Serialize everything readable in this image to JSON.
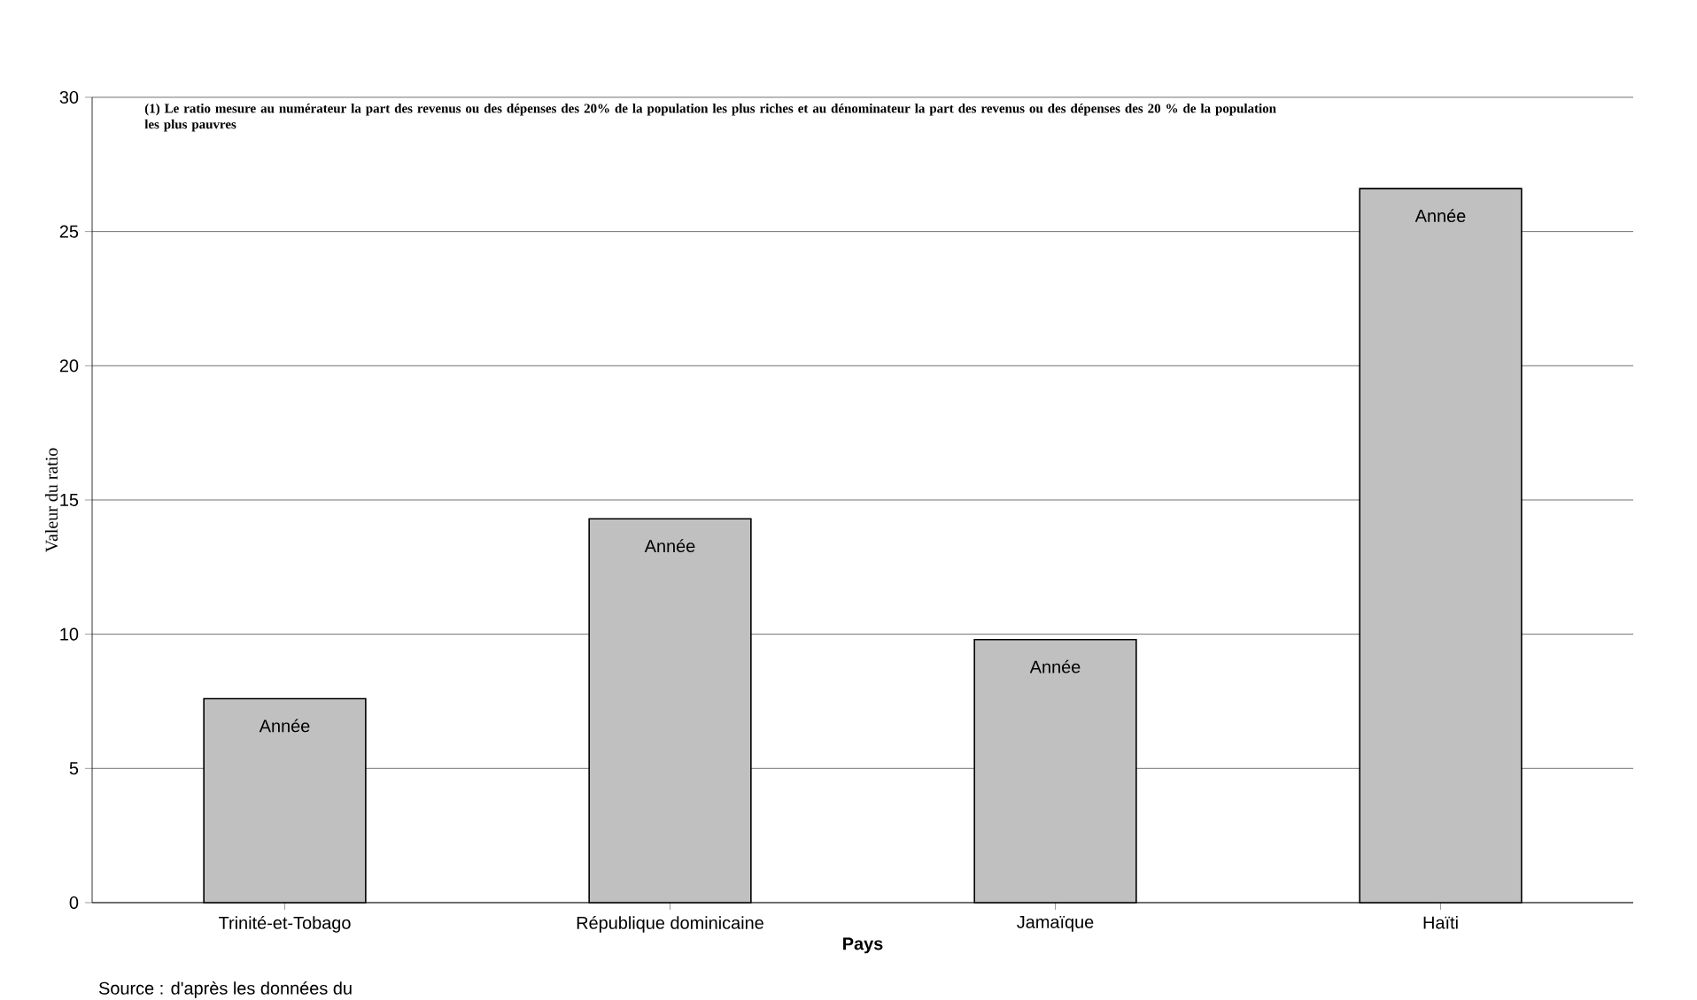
{
  "chart_data": {
    "type": "bar",
    "xlabel": "Pays",
    "ylabel": "Valeur du ratio",
    "categories": [
      "Trinité-et-Tobago",
      "République dominicaine",
      "Jamaïque",
      "Haïti"
    ],
    "values": [
      7.6,
      14.3,
      9.8,
      26.6
    ],
    "color": "#c0c0c0",
    "ylim": [
      0,
      30
    ],
    "yticks": [
      0,
      5,
      10,
      15,
      20,
      25,
      30
    ],
    "grid": "y",
    "annotations": [
      "(1) Le ratio mesure au numérateur la part des revenus ou des dépenses des 20% de la population les plus riches et au dénominateur la part des revenus ou des dépenses des 20 % de la population les plus pauvres",
      "Source : d'après les données du",
      {
        "text": "Année",
        "x": "Trinité-et-Tobago",
        "y": 7.6
      },
      {
        "text": "Année",
        "x": "République dominicaine",
        "y": 14.3
      },
      {
        "text": "Année",
        "x": "Jamaïque",
        "y": 9.8
      },
      {
        "text": "Année",
        "x": "Haïti",
        "y": 26.6
      }
    ]
  }
}
